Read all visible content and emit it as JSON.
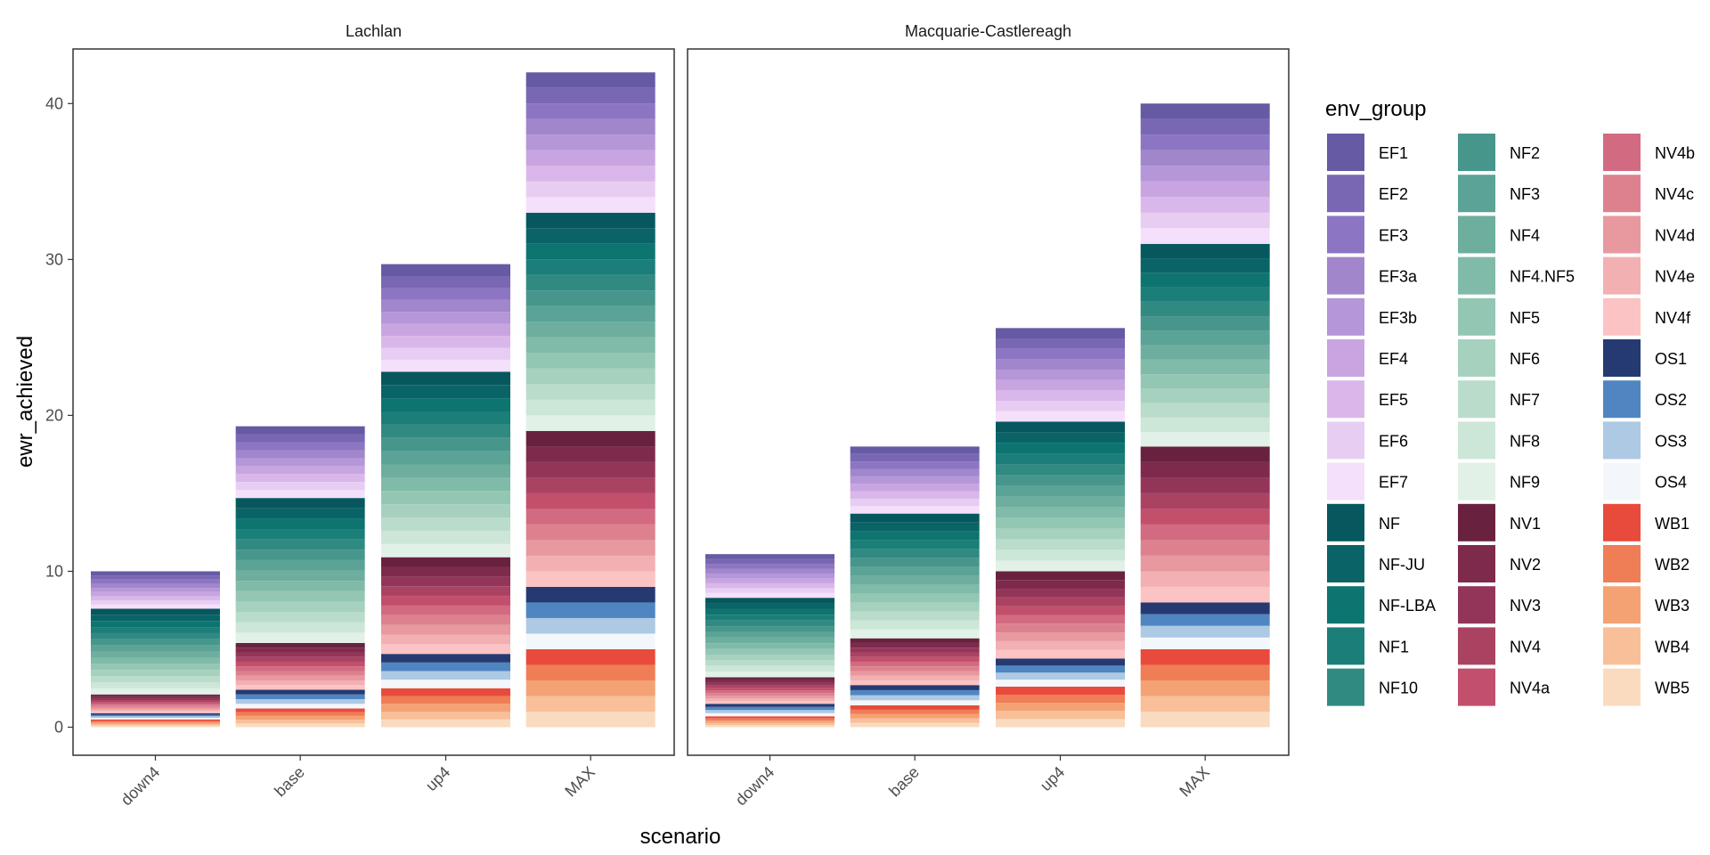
{
  "chart_data": {
    "type": "bar",
    "stacked": true,
    "xlabel": "scenario",
    "ylabel": "ewr_achieved",
    "ylim": [
      -1.8,
      43.5
    ],
    "yticks": [
      0,
      10,
      20,
      30,
      40
    ],
    "categories": [
      "down4",
      "base",
      "up4",
      "MAX"
    ],
    "facets": [
      {
        "title": "Lachlan",
        "totals": {
          "down4": 10,
          "base": 19.3,
          "up4": 29.7,
          "MAX": 42
        },
        "group_totals": {
          "WB": {
            "down4": 0.5,
            "base": 1.2,
            "up4": 2.5,
            "MAX": 5
          },
          "OS": {
            "down4": 0.4,
            "base": 1.2,
            "up4": 2.2,
            "MAX": 4
          },
          "NV": {
            "down4": 1.2,
            "base": 3,
            "up4": 6.2,
            "MAX": 10
          },
          "NF": {
            "down4": 5.5,
            "base": 9.3,
            "up4": 11.9,
            "MAX": 14
          },
          "EF": {
            "down4": 2.4,
            "base": 4.6,
            "up4": 6.9,
            "MAX": 9
          }
        }
      },
      {
        "title": "Macquarie-Castlereagh",
        "totals": {
          "down4": 11.1,
          "base": 18,
          "up4": 25.6,
          "MAX": 40
        },
        "group_totals": {
          "WB": {
            "down4": 0.7,
            "base": 1.4,
            "up4": 2.6,
            "MAX": 5
          },
          "OS": {
            "down4": 0.8,
            "base": 1.3,
            "up4": 1.8,
            "MAX": 3
          },
          "NV": {
            "down4": 1.7,
            "base": 3,
            "up4": 5.6,
            "MAX": 10
          },
          "NF": {
            "down4": 5.1,
            "base": 8,
            "up4": 9.6,
            "MAX": 13
          },
          "EF": {
            "down4": 2.8,
            "base": 4.3,
            "up4": 6,
            "MAX": 9
          }
        }
      }
    ],
    "stack_order": [
      "WB",
      "OS",
      "NV",
      "NF",
      "EF"
    ],
    "legend": {
      "title": "env_group",
      "position": "right",
      "groups": {
        "WB": [
          {
            "name": "WB1",
            "color": "#e84b3c"
          },
          {
            "name": "WB2",
            "color": "#ef7d56"
          },
          {
            "name": "WB3",
            "color": "#f4a274"
          },
          {
            "name": "WB4",
            "color": "#f8bf99"
          },
          {
            "name": "WB5",
            "color": "#fadbc0"
          }
        ],
        "OS": [
          {
            "name": "OS1",
            "color": "#263a72"
          },
          {
            "name": "OS2",
            "color": "#4f86c1"
          },
          {
            "name": "OS3",
            "color": "#adc9e3"
          },
          {
            "name": "OS4",
            "color": "#f3f7fc"
          }
        ],
        "NV": [
          {
            "name": "NV1",
            "color": "#68223f"
          },
          {
            "name": "NV2",
            "color": "#7e2a4c"
          },
          {
            "name": "NV3",
            "color": "#933559"
          },
          {
            "name": "NV4",
            "color": "#aa4362"
          },
          {
            "name": "NV4a",
            "color": "#c24f6c"
          },
          {
            "name": "NV4b",
            "color": "#d26b81"
          },
          {
            "name": "NV4c",
            "color": "#de818f"
          },
          {
            "name": "NV4d",
            "color": "#e8989f"
          },
          {
            "name": "NV4e",
            "color": "#f2b0b3"
          },
          {
            "name": "NV4f",
            "color": "#fbc3c4"
          }
        ],
        "NF": [
          {
            "name": "NF",
            "color": "#07575e"
          },
          {
            "name": "NF-JU",
            "color": "#0a6467"
          },
          {
            "name": "NF-LBA",
            "color": "#0d7470"
          },
          {
            "name": "NF1",
            "color": "#1b7e78"
          },
          {
            "name": "NF10",
            "color": "#318a82"
          },
          {
            "name": "NF2",
            "color": "#47968c"
          },
          {
            "name": "NF3",
            "color": "#5aa396"
          },
          {
            "name": "NF4",
            "color": "#6dae9f"
          },
          {
            "name": "NF4.NF5",
            "color": "#80baa8"
          },
          {
            "name": "NF5",
            "color": "#93c7b4"
          },
          {
            "name": "NF6",
            "color": "#a6d1bf"
          },
          {
            "name": "NF7",
            "color": "#badccb"
          },
          {
            "name": "NF8",
            "color": "#cce6d8"
          },
          {
            "name": "NF9",
            "color": "#e1f1e7"
          }
        ],
        "EF": [
          {
            "name": "EF1",
            "color": "#655aa3"
          },
          {
            "name": "EF2",
            "color": "#7967b3"
          },
          {
            "name": "EF3",
            "color": "#8c76c3"
          },
          {
            "name": "EF3a",
            "color": "#a286cc"
          },
          {
            "name": "EF3b",
            "color": "#b596d8"
          },
          {
            "name": "EF4",
            "color": "#c8a5e0"
          },
          {
            "name": "EF5",
            "color": "#dab7eb"
          },
          {
            "name": "EF6",
            "color": "#e8cdf3"
          },
          {
            "name": "EF7",
            "color": "#f4e0fa"
          }
        ]
      },
      "order": [
        "EF1",
        "EF2",
        "EF3",
        "EF3a",
        "EF3b",
        "EF4",
        "EF5",
        "EF6",
        "EF7",
        "NF",
        "NF-JU",
        "NF-LBA",
        "NF1",
        "NF10",
        "NF2",
        "NF3",
        "NF4",
        "NF4.NF5",
        "NF5",
        "NF6",
        "NF7",
        "NF8",
        "NF9",
        "NV1",
        "NV2",
        "NV3",
        "NV4",
        "NV4a",
        "NV4b",
        "NV4c",
        "NV4d",
        "NV4e",
        "NV4f",
        "OS1",
        "OS2",
        "OS3",
        "OS4",
        "WB1",
        "WB2",
        "WB3",
        "WB4",
        "WB5"
      ]
    }
  }
}
